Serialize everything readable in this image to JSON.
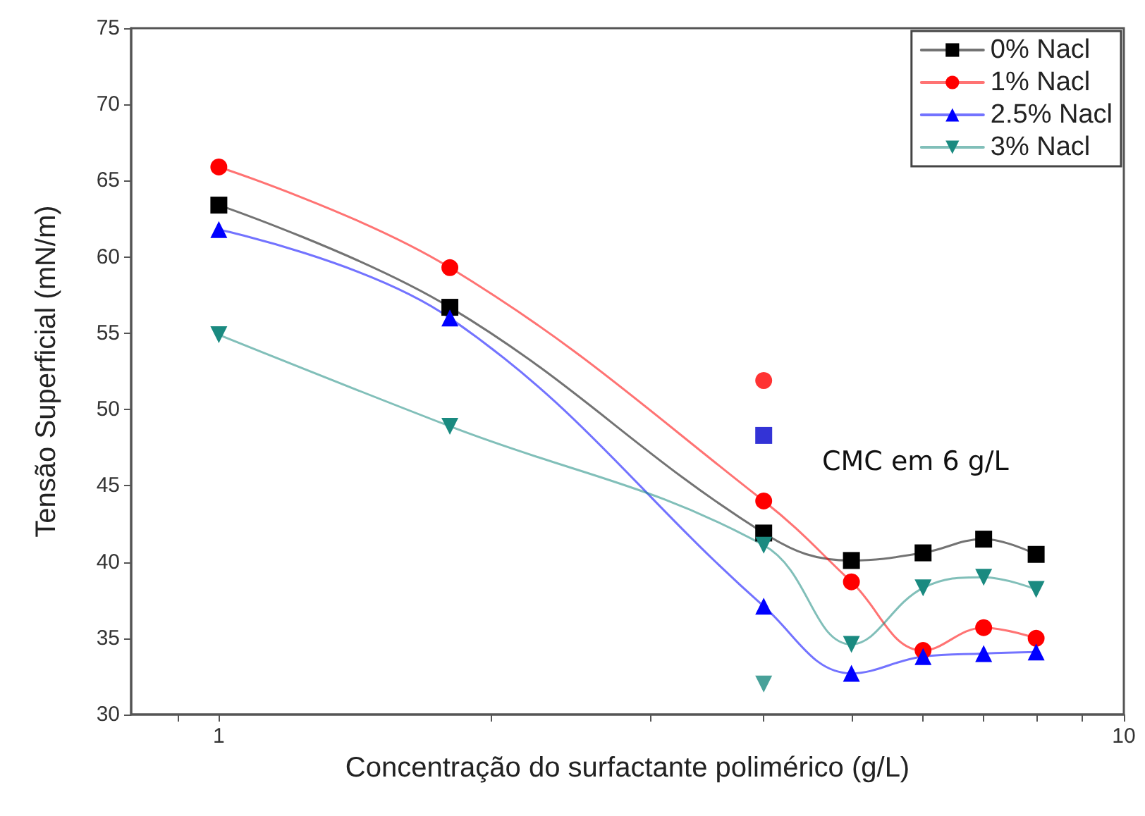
{
  "chart_data": {
    "type": "line",
    "xlabel": "Concentração do surfactante polimérico (g/L)",
    "ylabel": "Tensão Superficial (mN/m)",
    "x": [
      1,
      1.8,
      4,
      5,
      6,
      7,
      8
    ],
    "series": [
      {
        "name": "0% Nacl",
        "color": "#000000",
        "marker": "square",
        "values": [
          63.4,
          56.7,
          41.9,
          40.1,
          40.6,
          41.5,
          40.5
        ]
      },
      {
        "name": "1% Nacl",
        "color": "#ff0000",
        "marker": "circle",
        "values": [
          65.9,
          59.3,
          44.0,
          38.7,
          34.2,
          35.7,
          35.0
        ]
      },
      {
        "name": "2.5% Nacl",
        "color": "#0000ff",
        "marker": "triangle",
        "values": [
          61.8,
          56.0,
          37.1,
          32.7,
          33.8,
          34.0,
          34.1
        ]
      },
      {
        "name": "3% Nacl",
        "color": "#1a8a80",
        "marker": "triangle-down",
        "values": [
          54.9,
          48.9,
          41.1,
          34.6,
          38.3,
          39.0,
          38.2
        ]
      },
      {
        "type": "scatter",
        "color": "#ff0000",
        "marker": "circle",
        "values": [
          null,
          null,
          51.9,
          null,
          null,
          null,
          null
        ]
      },
      {
        "type": "scatter",
        "color": "#0000cc",
        "marker": "square",
        "values": [
          null,
          null,
          48.3,
          null,
          null,
          null,
          null
        ]
      },
      {
        "type": "scatter",
        "color": "#1a8a80",
        "marker": "triangle-down",
        "values": [
          null,
          null,
          32.0,
          null,
          null,
          null,
          null
        ]
      }
    ],
    "log": "x",
    "xlim": [
      0.8,
      10
    ],
    "xticks": [
      {
        "value": 0.9,
        "label": null
      },
      1,
      {
        "value": 2,
        "label": null
      },
      {
        "value": 3,
        "label": null
      },
      {
        "value": 4,
        "label": null
      },
      {
        "value": 5,
        "label": null
      },
      {
        "value": 6,
        "label": null
      },
      {
        "value": 7,
        "label": null
      },
      {
        "value": 8,
        "label": null
      },
      {
        "value": 9,
        "label": null
      },
      10
    ],
    "ylim": [
      30,
      75
    ],
    "yticks": [
      30,
      35,
      40,
      45,
      50,
      55,
      60,
      65,
      70,
      75
    ],
    "grid": false,
    "legend": "top right",
    "line_style": "solid",
    "annotations": [
      "CMC em 6 g/L"
    ]
  }
}
